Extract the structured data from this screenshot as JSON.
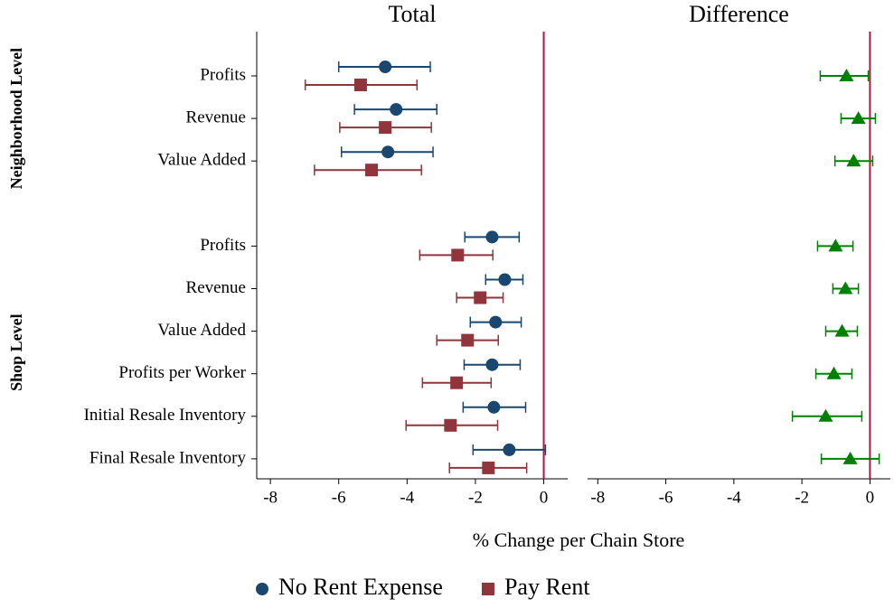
{
  "groups": [
    {
      "label": "Neighborhood Level",
      "categories": [
        "Profits",
        "Revenue",
        "Value Added"
      ]
    },
    {
      "label": "Shop Level",
      "categories": [
        "Profits",
        "Revenue",
        "Value Added",
        "Profits per Worker",
        "Initial Resale Inventory",
        "Final Resale Inventory"
      ]
    }
  ],
  "x_label": "% Change per Chain Store",
  "chart_data": [
    {
      "type": "coefplot",
      "title": "Total",
      "xlim": [
        -8.4,
        0.7
      ],
      "xticks": [
        -8,
        -6,
        -4,
        -2,
        0
      ],
      "refline": 0,
      "refline_color": "#b0173f",
      "series": [
        {
          "name": "No Rent Expense",
          "color": "#1a476f",
          "marker": "circle",
          "offset": -1,
          "values": [
            -4.64,
            -4.32,
            -4.56,
            -1.51,
            -1.14,
            -1.41,
            -1.51,
            -1.46,
            -1.01
          ],
          "ci_low": [
            -6.0,
            -5.54,
            -5.92,
            -2.31,
            -1.7,
            -2.15,
            -2.33,
            -2.36,
            -2.07
          ],
          "ci_high": [
            -3.32,
            -3.13,
            -3.24,
            -0.72,
            -0.61,
            -0.66,
            -0.69,
            -0.53,
            0.05
          ]
        },
        {
          "name": "Pay Rent",
          "color": "#90353b",
          "marker": "square",
          "offset": 1,
          "values": [
            -5.36,
            -4.64,
            -5.04,
            -2.52,
            -1.86,
            -2.23,
            -2.55,
            -2.73,
            -1.62
          ],
          "ci_low": [
            -6.98,
            -5.97,
            -6.71,
            -3.63,
            -2.55,
            -3.13,
            -3.55,
            -4.03,
            -2.76
          ],
          "ci_high": [
            -3.71,
            -3.29,
            -3.58,
            -1.49,
            -1.19,
            -1.33,
            -1.54,
            -1.35,
            -0.5
          ]
        }
      ]
    },
    {
      "type": "coefplot",
      "title": "Difference",
      "xlim": [
        -8.3,
        0.6
      ],
      "xticks": [
        -8,
        -6,
        -4,
        -2,
        0
      ],
      "refline": 0,
      "refline_color": "#b0173f",
      "series": [
        {
          "color": "#008000",
          "marker": "triangle",
          "offset": 0,
          "values": [
            -0.69,
            -0.34,
            -0.48,
            -1.01,
            -0.72,
            -0.82,
            -1.06,
            -1.3,
            -0.58
          ],
          "ci_low": [
            -1.46,
            -0.85,
            -1.03,
            -1.54,
            -1.09,
            -1.3,
            -1.59,
            -2.28,
            -1.43
          ],
          "ci_high": [
            -0.05,
            0.16,
            0.08,
            -0.5,
            -0.34,
            -0.37,
            -0.53,
            -0.24,
            0.27
          ]
        }
      ]
    }
  ]
}
